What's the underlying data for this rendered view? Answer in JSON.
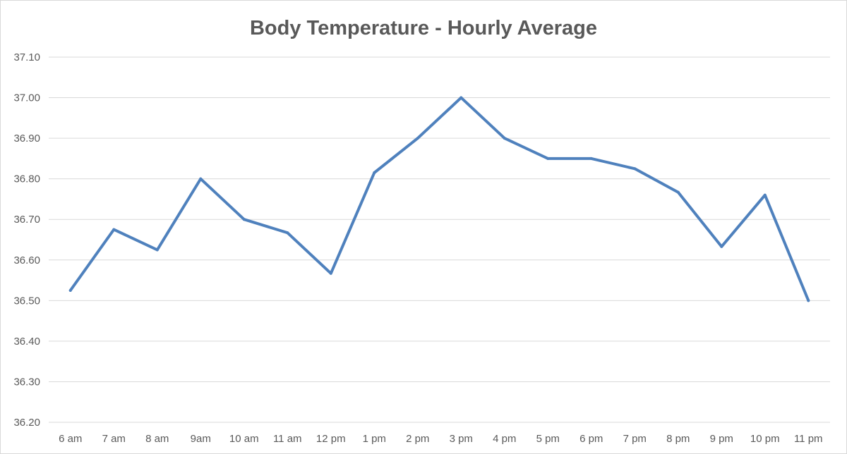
{
  "chart_data": {
    "type": "line",
    "title": "Body Temperature - Hourly Average",
    "xlabel": "",
    "ylabel": "",
    "categories": [
      "6 am",
      "7 am",
      "8 am",
      "9am",
      "10 am",
      "11 am",
      "12 pm",
      "1 pm",
      "2 pm",
      "3 pm",
      "4 pm",
      "5 pm",
      "6 pm",
      "7 pm",
      "8 pm",
      "9 pm",
      "10 pm",
      "11 pm"
    ],
    "series": [
      {
        "values": [
          36.525,
          36.675,
          36.625,
          36.8,
          36.7,
          36.667,
          36.567,
          36.815,
          36.9,
          37.0,
          36.9,
          36.85,
          36.85,
          36.825,
          36.767,
          36.633,
          36.76,
          36.5
        ],
        "color": "#4f81bd"
      }
    ],
    "ylim": [
      36.2,
      37.1
    ],
    "yticks": [
      "36.20",
      "36.30",
      "36.40",
      "36.50",
      "36.60",
      "36.70",
      "36.80",
      "36.90",
      "37.00",
      "37.10"
    ],
    "grid": true,
    "legend": "none"
  }
}
